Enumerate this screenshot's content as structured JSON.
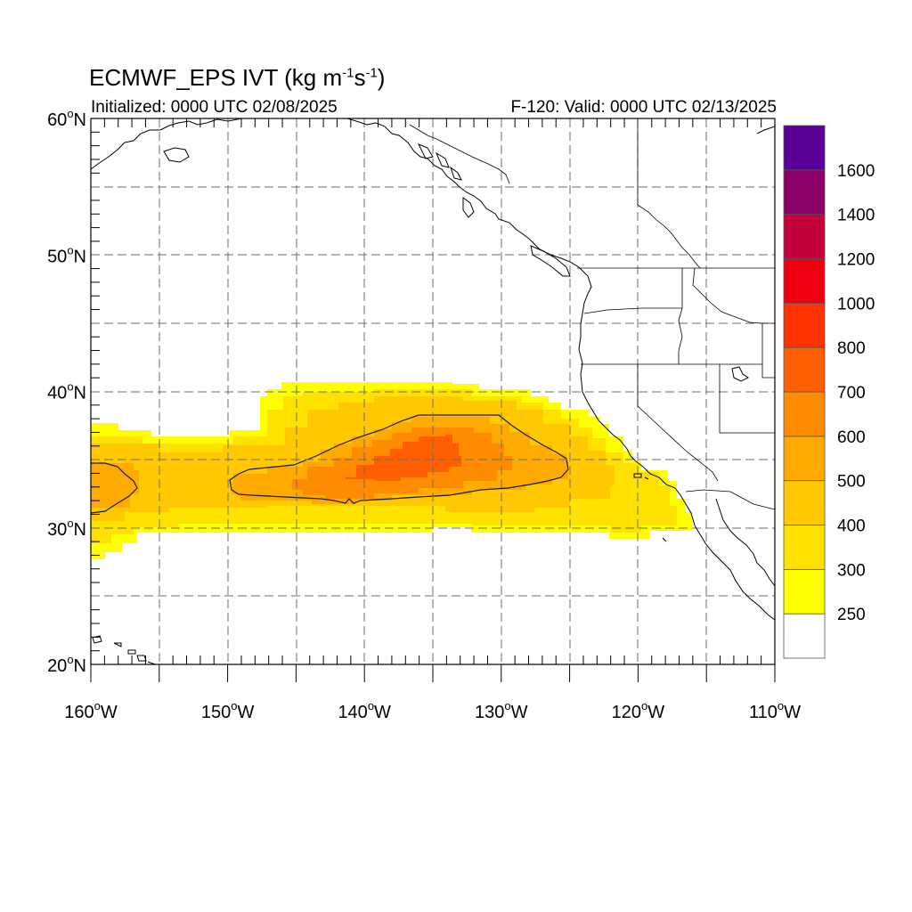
{
  "title": {
    "main": "ECMWF_EPS IVT (kg m",
    "exp1": "-1",
    "mid": "s",
    "exp2": "-1",
    "end": ")"
  },
  "subtitle_left": "Initialized: 0000 UTC 02/08/2025",
  "subtitle_right": "F-120: Valid: 0000 UTC 02/13/2025",
  "map": {
    "lon_range": [
      -160,
      -110
    ],
    "lat_range": [
      20,
      60
    ],
    "grid_lines": "dashed, every 5 degrees",
    "lon_ticks": [
      {
        "deg": "160",
        "hemi": "W"
      },
      {
        "deg": "150",
        "hemi": "W"
      },
      {
        "deg": "140",
        "hemi": "W"
      },
      {
        "deg": "130",
        "hemi": "W"
      },
      {
        "deg": "120",
        "hemi": "W"
      },
      {
        "deg": "110",
        "hemi": "W"
      }
    ],
    "lat_ticks": [
      {
        "deg": "60",
        "hemi": "N"
      },
      {
        "deg": "50",
        "hemi": "N"
      },
      {
        "deg": "40",
        "hemi": "N"
      },
      {
        "deg": "30",
        "hemi": "N"
      },
      {
        "deg": "20",
        "hemi": "N"
      }
    ],
    "degree_symbol": "o"
  },
  "colorbar": {
    "labels": [
      "1600",
      "1400",
      "1200",
      "1000",
      "800",
      "700",
      "600",
      "500",
      "400",
      "300",
      "250"
    ],
    "colors": [
      "#ffffff",
      "#ffff00",
      "#ffe100",
      "#ffc800",
      "#ffaa00",
      "#ff8c00",
      "#ff5f00",
      "#ff3200",
      "#ee0010",
      "#c4003c",
      "#8a0068",
      "#5a0096"
    ]
  },
  "ivt_field": {
    "colors": {
      "250": "#ffff00",
      "300": "#ffe100",
      "400": "#ffc800",
      "500": "#ffaa00",
      "600": "#ff8c00",
      "700": "#ff5f00"
    },
    "contour_level": 500
  }
}
